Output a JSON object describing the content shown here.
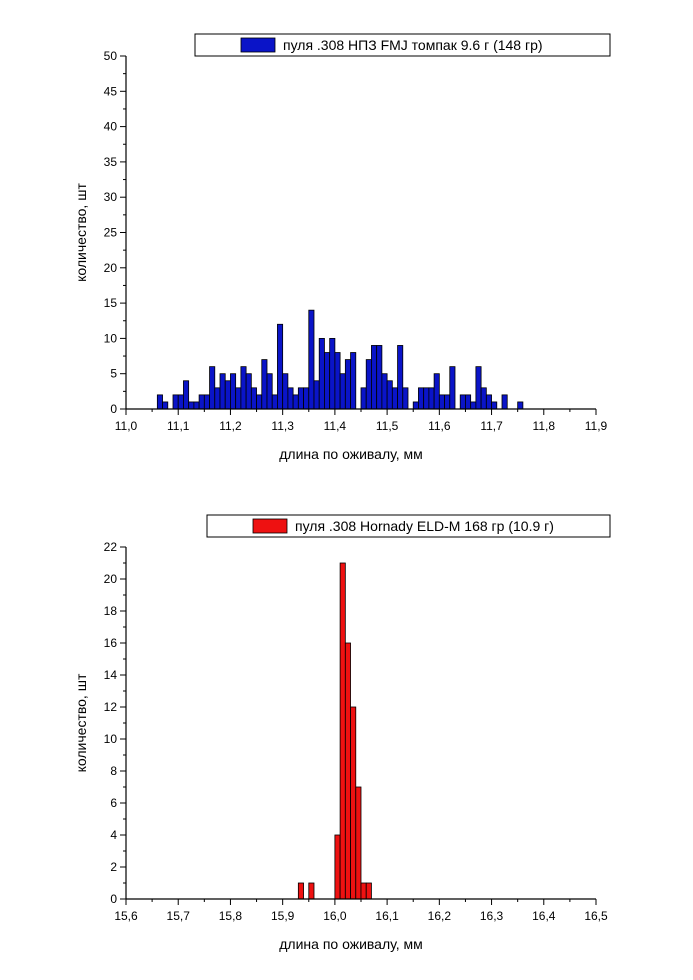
{
  "chart_data": [
    {
      "type": "bar",
      "legend": "пуля .308 НПЗ FMJ томпак 9.6 г (148 гр)",
      "xlabel": "длина по оживалу, мм",
      "ylabel": "количество, шт",
      "xlim": [
        11.0,
        11.9
      ],
      "ylim": [
        0,
        50
      ],
      "xticks": [
        "11,0",
        "11,1",
        "11,2",
        "11,3",
        "11,4",
        "11,5",
        "11,6",
        "11,7",
        "11,8",
        "11,9"
      ],
      "yticks": [
        "0",
        "5",
        "10",
        "15",
        "20",
        "25",
        "30",
        "35",
        "40",
        "45",
        "50"
      ],
      "bin_width": 0.01,
      "color": "#0a14c8",
      "bins": [
        [
          11.06,
          2
        ],
        [
          11.07,
          1
        ],
        [
          11.09,
          2
        ],
        [
          11.1,
          2
        ],
        [
          11.11,
          4
        ],
        [
          11.12,
          1
        ],
        [
          11.13,
          1
        ],
        [
          11.14,
          2
        ],
        [
          11.15,
          2
        ],
        [
          11.16,
          6
        ],
        [
          11.17,
          3
        ],
        [
          11.18,
          5
        ],
        [
          11.19,
          4
        ],
        [
          11.2,
          5
        ],
        [
          11.21,
          3
        ],
        [
          11.22,
          6
        ],
        [
          11.23,
          5
        ],
        [
          11.24,
          3
        ],
        [
          11.25,
          2
        ],
        [
          11.26,
          7
        ],
        [
          11.27,
          5
        ],
        [
          11.28,
          2
        ],
        [
          11.29,
          12
        ],
        [
          11.3,
          5
        ],
        [
          11.31,
          3
        ],
        [
          11.32,
          2
        ],
        [
          11.33,
          3
        ],
        [
          11.34,
          3
        ],
        [
          11.35,
          14
        ],
        [
          11.36,
          4
        ],
        [
          11.37,
          10
        ],
        [
          11.38,
          8
        ],
        [
          11.39,
          10
        ],
        [
          11.4,
          8
        ],
        [
          11.41,
          5
        ],
        [
          11.42,
          7
        ],
        [
          11.43,
          8
        ],
        [
          11.45,
          3
        ],
        [
          11.46,
          7
        ],
        [
          11.47,
          9
        ],
        [
          11.48,
          9
        ],
        [
          11.49,
          5
        ],
        [
          11.5,
          4
        ],
        [
          11.51,
          3
        ],
        [
          11.52,
          9
        ],
        [
          11.53,
          3
        ],
        [
          11.55,
          1
        ],
        [
          11.56,
          3
        ],
        [
          11.57,
          3
        ],
        [
          11.58,
          3
        ],
        [
          11.59,
          5
        ],
        [
          11.6,
          2
        ],
        [
          11.61,
          2
        ],
        [
          11.62,
          6
        ],
        [
          11.64,
          2
        ],
        [
          11.65,
          2
        ],
        [
          11.66,
          1
        ],
        [
          11.67,
          6
        ],
        [
          11.68,
          3
        ],
        [
          11.69,
          2
        ],
        [
          11.7,
          1
        ],
        [
          11.72,
          2
        ],
        [
          11.75,
          1
        ]
      ]
    },
    {
      "type": "bar",
      "legend": "пуля .308 Hornady ELD-M 168 гр (10.9 г)",
      "xlabel": "длина по оживалу, мм",
      "ylabel": "количество, шт",
      "xlim": [
        15.6,
        16.5
      ],
      "ylim": [
        0,
        22
      ],
      "xticks": [
        "15,6",
        "15,7",
        "15,8",
        "15,9",
        "16,0",
        "16,1",
        "16,2",
        "16,3",
        "16,4",
        "16,5"
      ],
      "yticks": [
        "0",
        "2",
        "4",
        "6",
        "8",
        "10",
        "12",
        "14",
        "16",
        "18",
        "20",
        "22"
      ],
      "bin_width": 0.01,
      "color": "#ee1111",
      "bins": [
        [
          15.93,
          1
        ],
        [
          15.95,
          1
        ],
        [
          16.0,
          4
        ],
        [
          16.01,
          21
        ],
        [
          16.02,
          16
        ],
        [
          16.03,
          12
        ],
        [
          16.04,
          7
        ],
        [
          16.05,
          1
        ],
        [
          16.06,
          1
        ]
      ]
    }
  ]
}
